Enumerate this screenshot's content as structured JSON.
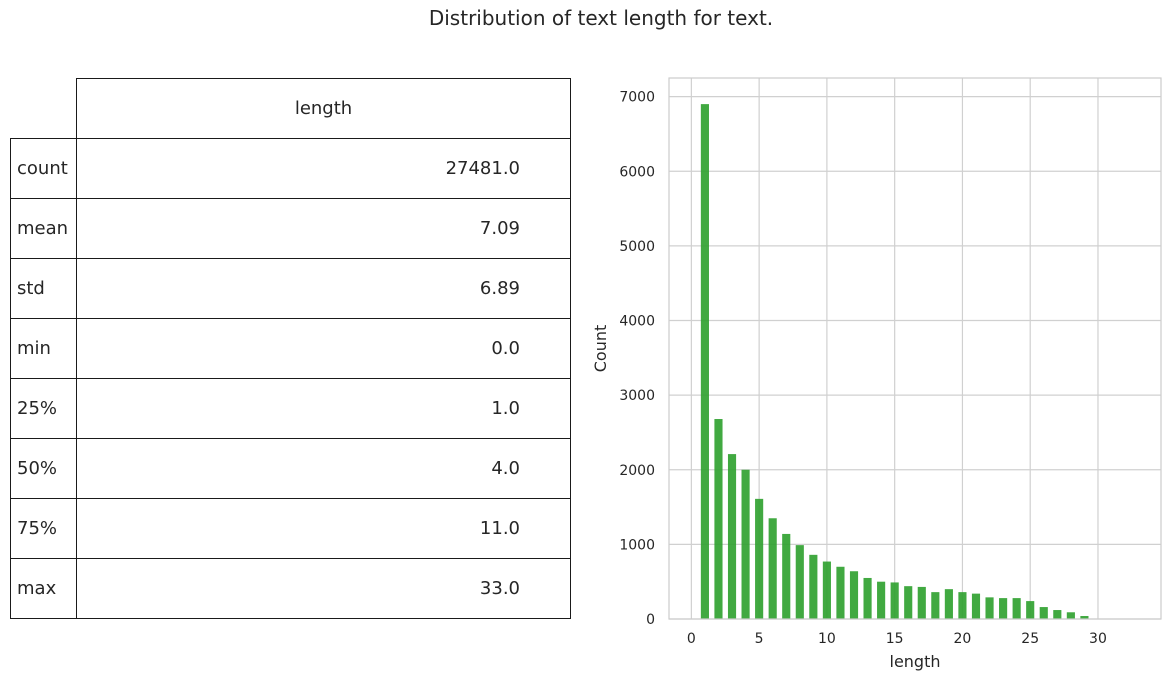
{
  "title": "Distribution of text length for text.",
  "table": {
    "column": "length",
    "rows": [
      {
        "label": "count",
        "value": "27481.0"
      },
      {
        "label": "mean",
        "value": "7.09"
      },
      {
        "label": "std",
        "value": "6.89"
      },
      {
        "label": "min",
        "value": "0.0"
      },
      {
        "label": "25%",
        "value": "1.0"
      },
      {
        "label": "50%",
        "value": "4.0"
      },
      {
        "label": "75%",
        "value": "11.0"
      },
      {
        "label": "max",
        "value": "33.0"
      }
    ]
  },
  "chart_data": {
    "type": "bar",
    "xlabel": "length",
    "ylabel": "Count",
    "xlim": [
      -1.65,
      34.65
    ],
    "ylim": [
      0,
      7250
    ],
    "xticks": [
      0,
      5,
      10,
      15,
      20,
      25,
      30
    ],
    "yticks": [
      0,
      1000,
      2000,
      3000,
      4000,
      5000,
      6000,
      7000
    ],
    "grid": true,
    "bar_color": "#2ca02c",
    "bin_width": 0.6,
    "x": [
      1,
      2,
      3,
      4,
      5,
      6,
      7,
      8,
      9,
      10,
      11,
      12,
      13,
      14,
      15,
      16,
      17,
      18,
      19,
      20,
      21,
      22,
      23,
      24,
      25,
      26,
      27,
      28,
      29
    ],
    "values": [
      6900,
      2680,
      2210,
      2000,
      1610,
      1350,
      1140,
      990,
      860,
      770,
      700,
      640,
      550,
      500,
      490,
      440,
      430,
      360,
      400,
      360,
      340,
      290,
      280,
      280,
      240,
      160,
      120,
      90,
      40
    ]
  }
}
